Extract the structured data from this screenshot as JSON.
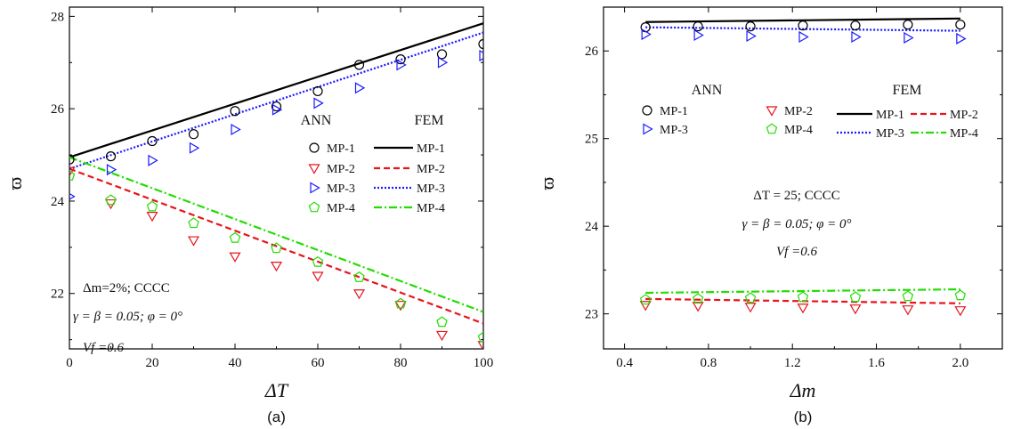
{
  "chart_data": [
    {
      "type": "line",
      "panel_label": "(a)",
      "xlabel": "ΔT",
      "ylabel": "ϖ",
      "xlim": [
        0,
        100
      ],
      "ylim": [
        20.8,
        28.2
      ],
      "xticks": [
        "0",
        "20",
        "40",
        "60",
        "80",
        "100"
      ],
      "yticks": [
        "22",
        "24",
        "26",
        "28"
      ],
      "annotations": [
        "Δm=2%; CCCC",
        "γ = β = 0.05; φ = 0°",
        "Vf =0.6"
      ],
      "legend": {
        "placement": "center-right",
        "ann_header": "ANN",
        "fem_header": "FEM",
        "ann_entries": [
          "MP-1",
          "MP-2",
          "MP-3",
          "MP-4"
        ],
        "fem_entries": [
          "MP-1",
          "MP-2",
          "MP-3",
          "MP-4"
        ]
      },
      "fem_series": [
        {
          "name": "MP-1",
          "color": "#000000",
          "dash": "solid",
          "x": [
            0,
            100
          ],
          "y": [
            24.95,
            27.85
          ]
        },
        {
          "name": "MP-2",
          "color": "#e8141e",
          "dash": "dashed",
          "x": [
            0,
            100
          ],
          "y": [
            24.7,
            21.35
          ]
        },
        {
          "name": "MP-3",
          "color": "#1a1aff",
          "dash": "dotted",
          "x": [
            0,
            100
          ],
          "y": [
            24.7,
            27.65
          ]
        },
        {
          "name": "MP-4",
          "color": "#22dd00",
          "dash": "dashdot",
          "x": [
            0,
            100
          ],
          "y": [
            24.95,
            21.6
          ]
        }
      ],
      "ann_series": [
        {
          "name": "MP-1",
          "marker": "circle",
          "color": "#000000",
          "x": [
            0,
            10,
            20,
            30,
            40,
            50,
            60,
            70,
            80,
            90,
            100
          ],
          "y": [
            24.9,
            24.97,
            25.3,
            25.45,
            25.95,
            26.05,
            26.38,
            26.95,
            27.07,
            27.18,
            27.4
          ]
        },
        {
          "name": "MP-2",
          "marker": "triangle-down",
          "color": "#e8141e",
          "x": [
            0,
            10,
            20,
            30,
            40,
            50,
            60,
            70,
            80,
            90,
            100
          ],
          "y": [
            24.65,
            23.95,
            23.68,
            23.15,
            22.8,
            22.6,
            22.38,
            22.0,
            21.75,
            21.1,
            20.88
          ]
        },
        {
          "name": "MP-3",
          "marker": "triangle-right",
          "color": "#1a1aff",
          "x": [
            0,
            10,
            20,
            30,
            40,
            50,
            60,
            70,
            80,
            90,
            100
          ],
          "y": [
            24.1,
            24.68,
            24.88,
            25.15,
            25.55,
            25.98,
            26.12,
            26.45,
            26.95,
            27.0,
            27.15
          ]
        },
        {
          "name": "MP-4",
          "marker": "pentagon",
          "color": "#22dd00",
          "x": [
            0,
            10,
            20,
            30,
            40,
            50,
            60,
            70,
            80,
            90,
            100
          ],
          "y": [
            24.55,
            24.02,
            23.88,
            23.52,
            23.2,
            22.98,
            22.68,
            22.35,
            21.78,
            21.38,
            21.05
          ]
        }
      ]
    },
    {
      "type": "line",
      "panel_label": "(b)",
      "xlabel": "Δm",
      "ylabel": "ϖ",
      "xlim": [
        0.3,
        2.2
      ],
      "ylim": [
        22.6,
        26.5
      ],
      "xticks": [
        "0.4",
        "0.8",
        "1.2",
        "1.6",
        "2.0"
      ],
      "yticks": [
        "23",
        "24",
        "25",
        "26"
      ],
      "annotations": [
        "ΔT = 25; CCCC",
        "γ = β = 0.05; φ = 0°",
        "Vf =0.6"
      ],
      "legend": {
        "placement": "top",
        "ann_header": "ANN",
        "fem_header": "FEM",
        "ann_entries": [
          "MP-1",
          "MP-2",
          "MP-3",
          "MP-4"
        ],
        "fem_entries": [
          "MP-1",
          "MP-2",
          "MP-3",
          "MP-4"
        ]
      },
      "fem_series": [
        {
          "name": "MP-1",
          "color": "#000000",
          "dash": "solid",
          "x": [
            0.5,
            2.0
          ],
          "y": [
            26.33,
            26.37
          ]
        },
        {
          "name": "MP-2",
          "color": "#e8141e",
          "dash": "dashed",
          "x": [
            0.5,
            2.0
          ],
          "y": [
            23.17,
            23.12
          ]
        },
        {
          "name": "MP-3",
          "color": "#1a1aff",
          "dash": "dotted",
          "x": [
            0.5,
            2.0
          ],
          "y": [
            26.27,
            26.23
          ]
        },
        {
          "name": "MP-4",
          "color": "#22dd00",
          "dash": "dashdot",
          "x": [
            0.5,
            2.0
          ],
          "y": [
            23.24,
            23.28
          ]
        }
      ],
      "ann_series": [
        {
          "name": "MP-1",
          "marker": "circle",
          "color": "#000000",
          "x": [
            0.5,
            0.75,
            1.0,
            1.25,
            1.5,
            1.75,
            2.0
          ],
          "y": [
            26.27,
            26.28,
            26.28,
            26.29,
            26.29,
            26.3,
            26.3
          ]
        },
        {
          "name": "MP-2",
          "marker": "triangle-down",
          "color": "#e8141e",
          "x": [
            0.5,
            0.75,
            1.0,
            1.25,
            1.5,
            1.75,
            2.0
          ],
          "y": [
            23.1,
            23.09,
            23.08,
            23.07,
            23.06,
            23.05,
            23.04
          ]
        },
        {
          "name": "MP-3",
          "marker": "triangle-right",
          "color": "#1a1aff",
          "x": [
            0.5,
            0.75,
            1.0,
            1.25,
            1.5,
            1.75,
            2.0
          ],
          "y": [
            26.19,
            26.18,
            26.17,
            26.16,
            26.16,
            26.15,
            26.14
          ]
        },
        {
          "name": "MP-4",
          "marker": "pentagon",
          "color": "#22dd00",
          "x": [
            0.5,
            0.75,
            1.0,
            1.25,
            1.5,
            1.75,
            2.0
          ],
          "y": [
            23.16,
            23.17,
            23.18,
            23.19,
            23.19,
            23.2,
            23.21
          ]
        }
      ]
    }
  ]
}
